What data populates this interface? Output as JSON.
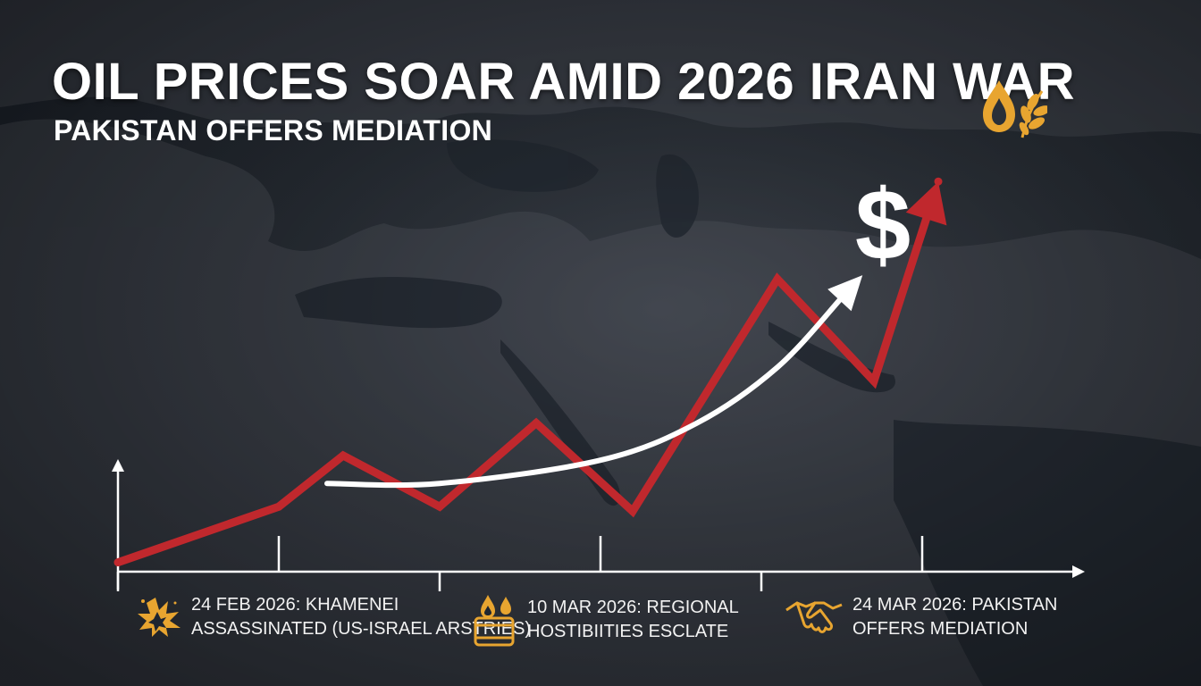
{
  "header": {
    "title": "OIL PRICES SOAR AMID 2026 IRAN WAR",
    "subtitle": "PAKISTAN OFFERS MEDIATION"
  },
  "colors": {
    "price_line": "#c0282d",
    "trend_arrow": "#ffffff",
    "axes": "#ffffff",
    "accent_gold": "#e8a530"
  },
  "icons": {
    "top_right": "oil-drop-olive-branch-icon",
    "currency": "dollar-sign-icon",
    "event_1": "explosion-icon",
    "event_2": "burning-oil-barrel-icon",
    "event_3": "handshake-icon"
  },
  "currency_symbol": "$",
  "events": [
    {
      "line1": "24 FEB 2026: KHAMENEI",
      "line2": "ASSASSINATED (US-ISRAEL ARSTRIES)"
    },
    {
      "line1": "10 MAR 2026: REGIONAL",
      "line2": "HOSTIBIITIES ESCLATE"
    },
    {
      "line1": "24 MAR 2026: PAKISTAN",
      "line2": "OFFERS MEDIATION"
    }
  ],
  "chart_data": {
    "type": "line",
    "title": "OIL PRICES SOAR AMID 2026 IRAN WAR",
    "xlabel": "",
    "ylabel": "",
    "x_ticks": 6,
    "grid": false,
    "series": [
      {
        "x": [
          0,
          1.0,
          1.4,
          2.0,
          2.6,
          3.2,
          4.1,
          4.7,
          5.1
        ],
        "values": [
          0.02,
          0.14,
          0.25,
          0.14,
          0.32,
          0.13,
          0.63,
          0.41,
          0.84
        ]
      }
    ],
    "trend": {
      "x": [
        1.3,
        2.0,
        3.0,
        3.6,
        4.1,
        4.5
      ],
      "values": [
        0.19,
        0.19,
        0.24,
        0.32,
        0.44,
        0.59
      ]
    }
  }
}
